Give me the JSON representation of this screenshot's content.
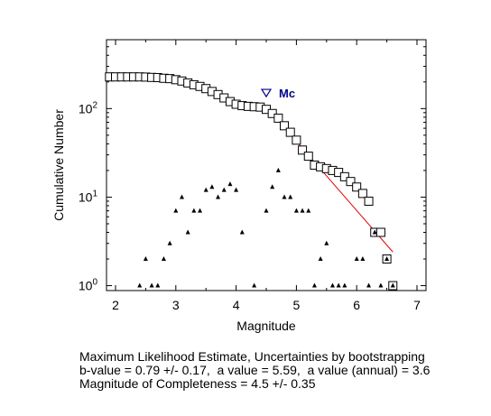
{
  "chart_data": {
    "type": "scatter",
    "xlabel": "Magnitude",
    "ylabel": "Cumulative Number",
    "xlim": [
      1.85,
      7.15
    ],
    "ylim": [
      0.88,
      600
    ],
    "yscale": "log",
    "x_ticks": [
      2,
      3,
      4,
      5,
      6,
      7
    ],
    "y_ticks": [
      {
        "value": 1,
        "base": "10",
        "exp": "0"
      },
      {
        "value": 10,
        "base": "10",
        "exp": "1"
      },
      {
        "value": 100,
        "base": "10",
        "exp": "2"
      }
    ],
    "grid": false,
    "legend": "none",
    "series": [
      {
        "marker": "open-square",
        "x": [
          1.9,
          2.0,
          2.1,
          2.2,
          2.3,
          2.4,
          2.5,
          2.6,
          2.7,
          2.8,
          2.9,
          3.0,
          3.1,
          3.2,
          3.3,
          3.4,
          3.5,
          3.6,
          3.7,
          3.8,
          3.9,
          4.0,
          4.1,
          4.2,
          4.3,
          4.4,
          4.5,
          4.6,
          4.7,
          4.8,
          4.9,
          5.0,
          5.1,
          5.2,
          5.3,
          5.4,
          5.5,
          5.6,
          5.7,
          5.8,
          5.9,
          6.0,
          6.1,
          6.2,
          6.3,
          6.4,
          6.5,
          6.6
        ],
        "y": [
          228,
          228,
          228,
          228,
          228,
          228,
          227,
          225,
          224,
          220,
          218,
          212,
          205,
          195,
          186,
          178,
          168,
          156,
          144,
          132,
          120,
          112,
          108,
          106,
          105,
          104,
          98,
          88,
          78,
          64,
          54,
          44,
          34,
          29,
          23,
          22,
          21,
          20,
          19,
          17,
          15,
          13,
          11,
          9,
          4,
          4,
          2,
          1
        ]
      },
      {
        "marker": "triangle",
        "x": [
          2.4,
          2.5,
          2.6,
          2.7,
          2.8,
          2.9,
          3.0,
          3.1,
          3.2,
          3.3,
          3.4,
          3.5,
          3.6,
          3.7,
          3.8,
          3.9,
          4.0,
          4.1,
          4.3,
          4.5,
          4.6,
          4.7,
          4.8,
          4.9,
          5.0,
          5.1,
          5.2,
          5.3,
          5.4,
          5.5,
          5.6,
          5.7,
          5.8,
          6.0,
          6.1,
          6.2,
          6.3,
          6.4,
          6.5,
          6.6
        ],
        "y": [
          1,
          2,
          1,
          1,
          2,
          3,
          7,
          10,
          4,
          7,
          7,
          12,
          13,
          10,
          12,
          14,
          12,
          4,
          1,
          7,
          13,
          20,
          10,
          10,
          7,
          7,
          7,
          1,
          2,
          3,
          1,
          1,
          1,
          2,
          2,
          1,
          4,
          1,
          2,
          1
        ]
      },
      {
        "type": "line",
        "color": "#e00000",
        "x": [
          4.5,
          6.6
        ],
        "y": [
          105,
          2.4
        ]
      }
    ],
    "annotations": [
      {
        "text": "Mc",
        "marker": "inverted-triangle",
        "x": 4.5,
        "y": 150,
        "color": "#00008b"
      }
    ]
  },
  "caption": {
    "line1": "Maximum Likelihood Estimate, Uncertainties by bootstrapping",
    "line2": "b-value = 0.79 +/- 0.17,  a value = 5.59,  a value (annual) = 3.6",
    "line3": "Magnitude of Completeness = 4.5 +/- 0.35"
  }
}
